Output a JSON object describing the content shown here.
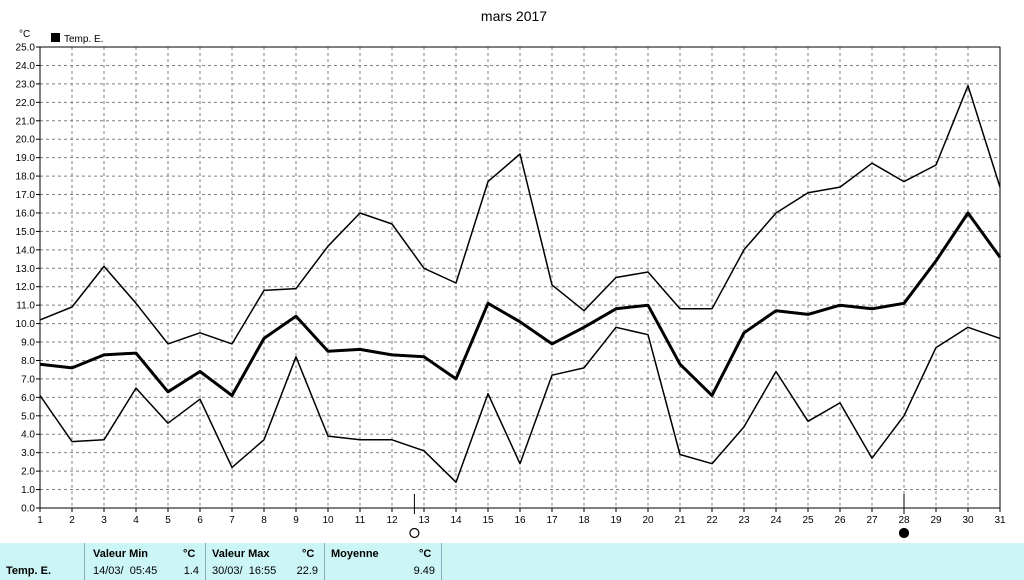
{
  "chart_data": {
    "type": "line",
    "title": "mars 2017",
    "ylabel": "°C",
    "xlabel": "",
    "legend": {
      "label": "Temp. E.",
      "placement": "top-left"
    },
    "ylim": [
      0,
      25
    ],
    "y_ticks": [
      "0.0",
      "1.0",
      "2.0",
      "3.0",
      "4.0",
      "5.0",
      "6.0",
      "7.0",
      "8.0",
      "9.0",
      "10.0",
      "11.0",
      "12.0",
      "13.0",
      "14.0",
      "15.0",
      "16.0",
      "17.0",
      "18.0",
      "19.0",
      "20.0",
      "21.0",
      "22.0",
      "23.0",
      "24.0",
      "25.0"
    ],
    "x": [
      1,
      2,
      3,
      4,
      5,
      6,
      7,
      8,
      9,
      10,
      11,
      12,
      13,
      14,
      15,
      16,
      17,
      18,
      19,
      20,
      21,
      22,
      23,
      24,
      25,
      26,
      27,
      28,
      29,
      30,
      31
    ],
    "grid": true,
    "series": [
      {
        "role": "max",
        "line_width": 1.5,
        "values": [
          10.2,
          10.9,
          13.1,
          11.1,
          8.9,
          9.5,
          8.9,
          11.8,
          11.9,
          14.2,
          16.0,
          15.4,
          13.0,
          12.2,
          17.7,
          19.2,
          12.1,
          10.7,
          12.5,
          12.8,
          10.8,
          10.8,
          14.0,
          16.0,
          17.1,
          17.4,
          18.7,
          17.7,
          18.6,
          22.9,
          17.4
        ]
      },
      {
        "role": "mean",
        "line_width": 3,
        "values": [
          7.8,
          7.6,
          8.3,
          8.4,
          6.3,
          7.4,
          6.1,
          9.2,
          10.4,
          8.5,
          8.6,
          8.3,
          8.2,
          7.0,
          11.1,
          10.1,
          8.9,
          9.8,
          10.8,
          11.0,
          7.8,
          6.1,
          9.5,
          10.7,
          10.5,
          11.0,
          10.8,
          11.1,
          13.4,
          16.0,
          13.6
        ]
      },
      {
        "role": "min",
        "line_width": 1.5,
        "values": [
          6.1,
          3.6,
          3.7,
          6.5,
          4.6,
          5.9,
          2.2,
          3.7,
          8.2,
          3.9,
          3.7,
          3.7,
          3.1,
          1.4,
          6.2,
          2.4,
          7.2,
          7.6,
          9.8,
          9.4,
          2.9,
          2.4,
          4.4,
          7.4,
          4.7,
          5.7,
          2.7,
          5.0,
          8.7,
          9.8,
          9.2
        ]
      }
    ],
    "moon_phases": [
      {
        "day": 12.7,
        "phase": "full-moon"
      },
      {
        "day": 28,
        "phase": "new-moon"
      }
    ]
  },
  "footer": {
    "series_label": "Temp. E.",
    "min": {
      "header": "Valeur Min",
      "unit": "°C",
      "datetime": "14/03/  05:45",
      "value": "1.4"
    },
    "max": {
      "header": "Valeur Max",
      "unit": "°C",
      "datetime": "30/03/  16:55",
      "value": "22.9"
    },
    "mean": {
      "header": "Moyenne",
      "unit": "°C",
      "value": "9.49"
    }
  },
  "colors": {
    "line": "#000000",
    "grid": "#808080",
    "footer_bg": "#ccf6f6",
    "background": "#ffffff"
  }
}
